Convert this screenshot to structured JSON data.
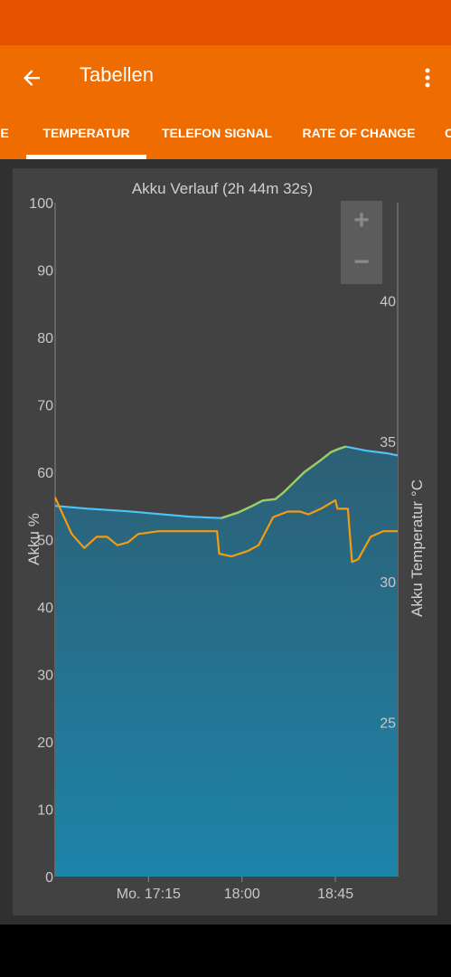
{
  "app_bar": {
    "title": "Tabellen",
    "back_icon": "arrow-left-icon",
    "more_icon": "more-vert-icon"
  },
  "tabs": [
    {
      "label": "E",
      "selected": false
    },
    {
      "label": "TEMPERATUR",
      "selected": true
    },
    {
      "label": "TELEFON SIGNAL",
      "selected": false
    },
    {
      "label": "RATE OF CHANGE",
      "selected": false
    },
    {
      "label": "C",
      "selected": false
    }
  ],
  "zoom": {
    "plus_label": "+",
    "minus_label": "−"
  },
  "colors": {
    "statusbar": "#E65100",
    "appbar": "#EF6C00",
    "battery_line": "#4FC3F7",
    "charging_line": "#9CCC65",
    "temperature_line": "#F39C12",
    "area_fill": "#1E7FA3"
  },
  "chart_data": {
    "type": "line",
    "title": "Akku Verlauf (2h 44m 32s)",
    "y_left_label": "Akku %",
    "y_right_label": "Akku Temperatur °C",
    "y_left_ticks": [
      "100",
      "90",
      "80",
      "70",
      "60",
      "50",
      "40",
      "30",
      "20",
      "10",
      "0"
    ],
    "y_right_ticks": [
      "40",
      "35",
      "30",
      "25"
    ],
    "x_ticks": [
      "Mo. 17:15",
      "18:00",
      "18:45"
    ],
    "ylim_left": [
      0,
      100
    ],
    "ylim_right": [
      19.5,
      43.5
    ],
    "xlim_minutes_after_1630": [
      0,
      165
    ],
    "grid": false,
    "series": [
      {
        "role": "battery",
        "points": [
          [
            0,
            55
          ],
          [
            15,
            54.6
          ],
          [
            35,
            54.2
          ],
          [
            50,
            53.8
          ],
          [
            65,
            53.4
          ],
          [
            80,
            53.2
          ],
          [
            88,
            54
          ],
          [
            95,
            55
          ],
          [
            100,
            55.8
          ],
          [
            106,
            56
          ],
          [
            110,
            57
          ],
          [
            120,
            60
          ],
          [
            128,
            61.8
          ],
          [
            133,
            63
          ],
          [
            137,
            63.5
          ],
          [
            140,
            63.8
          ],
          [
            150,
            63.2
          ],
          [
            160,
            62.8
          ],
          [
            165,
            62.5
          ]
        ]
      },
      {
        "role": "charging",
        "charging_segments": [
          [
            78,
            120
          ],
          [
            120,
            141
          ]
        ]
      },
      {
        "role": "temperature",
        "points": [
          [
            0,
            33
          ],
          [
            8,
            31.7
          ],
          [
            14,
            31.2
          ],
          [
            20,
            31.6
          ],
          [
            25,
            31.6
          ],
          [
            30,
            31.3
          ],
          [
            35,
            31.4
          ],
          [
            40,
            31.7
          ],
          [
            50,
            31.8
          ],
          [
            65,
            31.8
          ],
          [
            78,
            31.8
          ],
          [
            79,
            31
          ],
          [
            85,
            30.9
          ],
          [
            93,
            31.1
          ],
          [
            98,
            31.3
          ],
          [
            105,
            32.3
          ],
          [
            112,
            32.5
          ],
          [
            118,
            32.5
          ],
          [
            122,
            32.4
          ],
          [
            128,
            32.6
          ],
          [
            135,
            32.9
          ],
          [
            136,
            32.6
          ],
          [
            141,
            32.6
          ],
          [
            143,
            30.7
          ],
          [
            146,
            30.8
          ],
          [
            152,
            31.6
          ],
          [
            158,
            31.8
          ],
          [
            165,
            31.8
          ]
        ]
      }
    ]
  }
}
